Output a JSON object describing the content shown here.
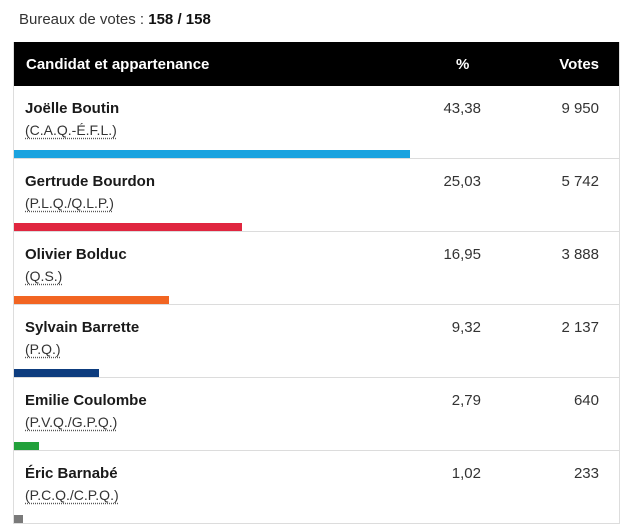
{
  "summary": {
    "label": "Bureaux de votes : ",
    "count": "158 / 158"
  },
  "table": {
    "headers": {
      "candidate": "Candidat et appartenance",
      "pct": "%",
      "votes": "Votes"
    },
    "rows": [
      {
        "name": "Joëlle Boutin",
        "party": "(C.A.Q.-É.F.L.)",
        "pct": "43,38",
        "votes": "9 950",
        "share": 43.38,
        "color": "#1ba3df"
      },
      {
        "name": "Gertrude Bourdon",
        "party": "(P.L.Q./Q.L.P.)",
        "pct": "25,03",
        "votes": "5 742",
        "share": 25.03,
        "color": "#e0263f"
      },
      {
        "name": "Olivier Bolduc",
        "party": "(Q.S.)",
        "pct": "16,95",
        "votes": "3 888",
        "share": 16.95,
        "color": "#f26522"
      },
      {
        "name": "Sylvain Barrette",
        "party": "(P.Q.)",
        "pct": "9,32",
        "votes": "2 137",
        "share": 9.32,
        "color": "#0d3c7e"
      },
      {
        "name": "Emilie Coulombe",
        "party": "(P.V.Q./G.P.Q.)",
        "pct": "2,79",
        "votes": "640",
        "share": 2.79,
        "color": "#22a13b"
      },
      {
        "name": "Éric Barnabé",
        "party": "(P.C.Q./C.P.Q.)",
        "pct": "1,02",
        "votes": "233",
        "share": 1.02,
        "color": "#7a7a7a"
      }
    ]
  }
}
